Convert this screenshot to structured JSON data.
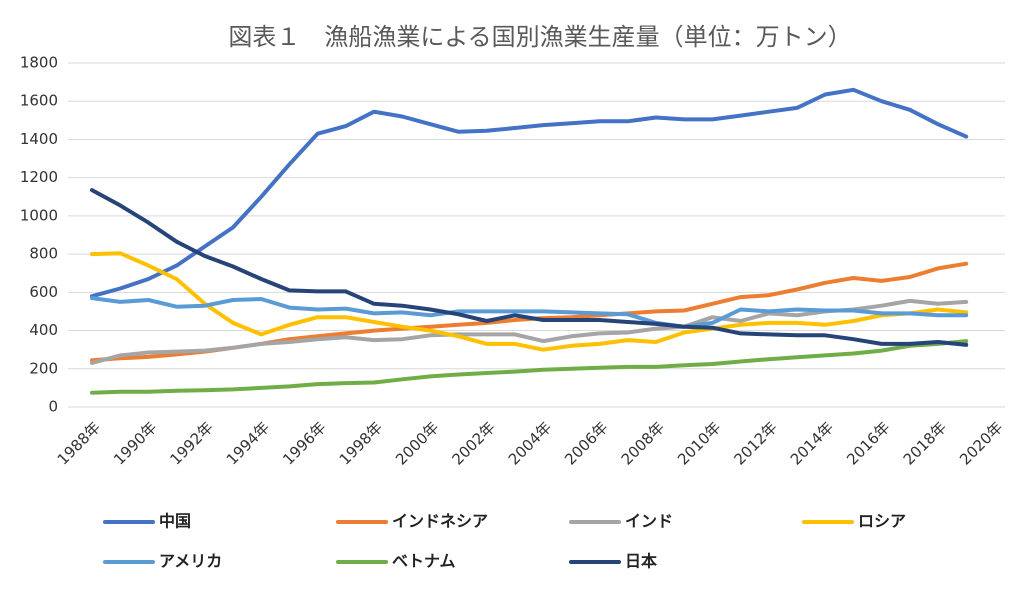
{
  "chart_data": {
    "type": "line",
    "title": "図表１　漁船漁業による国別漁業生産量（単位：万トン）",
    "categories": [
      "1988年",
      null,
      "1990年",
      null,
      "1992年",
      null,
      "1994年",
      null,
      "1996年",
      null,
      "1998年",
      null,
      "2000年",
      null,
      "2002年",
      null,
      "2004年",
      null,
      "2006年",
      null,
      "2008年",
      null,
      "2010年",
      null,
      "2012年",
      null,
      "2014年",
      null,
      "2016年",
      null,
      "2018年",
      null,
      "2020年"
    ],
    "ylim": [
      0,
      1800
    ],
    "yticks": [
      0,
      200,
      400,
      600,
      800,
      1000,
      1200,
      1400,
      1600,
      1800
    ],
    "grid": true,
    "legend": "bottom",
    "series": [
      {
        "name": "中国",
        "color": "#4472c4",
        "values": [
          580,
          620,
          670,
          740,
          840,
          940,
          1100,
          1270,
          1430,
          1470,
          1545,
          1520,
          1480,
          1440,
          1445,
          1460,
          1475,
          1485,
          1495,
          1495,
          1515,
          1505,
          1505,
          1525,
          1545,
          1565,
          1635,
          1660,
          1600,
          1555,
          1480,
          1415,
          null
        ]
      },
      {
        "name": "インドネシア",
        "color": "#ed7d31",
        "values": [
          245,
          255,
          262,
          275,
          290,
          310,
          330,
          355,
          370,
          385,
          400,
          410,
          420,
          430,
          440,
          455,
          465,
          470,
          480,
          490,
          500,
          505,
          540,
          575,
          585,
          615,
          650,
          675,
          660,
          680,
          725,
          750,
          null
        ]
      },
      {
        "name": "インド",
        "color": "#a5a5a5",
        "values": [
          230,
          270,
          285,
          290,
          295,
          310,
          330,
          340,
          355,
          365,
          350,
          355,
          375,
          380,
          380,
          380,
          345,
          370,
          385,
          390,
          410,
          420,
          470,
          450,
          490,
          480,
          500,
          510,
          530,
          555,
          540,
          550,
          null
        ]
      },
      {
        "name": "ロシア",
        "color": "#ffc000",
        "values": [
          800,
          805,
          740,
          670,
          540,
          440,
          380,
          430,
          470,
          470,
          445,
          420,
          400,
          370,
          330,
          330,
          300,
          320,
          330,
          350,
          340,
          390,
          410,
          430,
          440,
          440,
          430,
          450,
          480,
          490,
          510,
          495,
          null
        ]
      },
      {
        "name": "アメリカ",
        "color": "#5b9bd5",
        "values": [
          570,
          550,
          560,
          525,
          530,
          560,
          565,
          520,
          510,
          515,
          490,
          495,
          480,
          500,
          500,
          500,
          500,
          495,
          490,
          485,
          440,
          420,
          440,
          510,
          500,
          510,
          505,
          505,
          490,
          490,
          480,
          480,
          null
        ]
      },
      {
        "name": "ベトナム",
        "color": "#70ad47",
        "values": [
          75,
          80,
          80,
          85,
          88,
          92,
          100,
          108,
          120,
          125,
          128,
          145,
          160,
          170,
          178,
          185,
          195,
          200,
          205,
          210,
          210,
          218,
          225,
          238,
          250,
          260,
          270,
          280,
          295,
          320,
          330,
          345,
          null
        ]
      },
      {
        "name": "日本",
        "color": "#264478",
        "values": [
          1135,
          1055,
          965,
          865,
          790,
          735,
          670,
          610,
          605,
          605,
          540,
          530,
          510,
          485,
          450,
          480,
          455,
          455,
          455,
          445,
          435,
          420,
          415,
          385,
          380,
          375,
          375,
          355,
          330,
          330,
          340,
          325,
          null
        ]
      }
    ]
  }
}
